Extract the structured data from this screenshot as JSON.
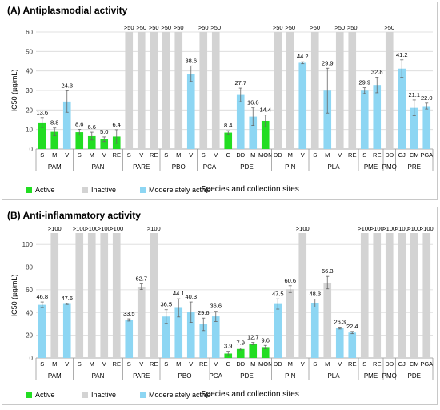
{
  "colors": {
    "active": "#22dd22",
    "inactive": "#d3d3d3",
    "moderate": "#8dd6f3"
  },
  "legend": {
    "active": "Active",
    "inactive": "Inactive",
    "moderate": "Moderelately active"
  },
  "chart_data": [
    {
      "type": "bar",
      "title": "(A) Antiplasmodial activity",
      "ylabel": "IC50 (µg/mL)",
      "xlabel": "Species and collection sites",
      "ylim": [
        0,
        60
      ],
      "yticks": [
        "0",
        "10",
        "20",
        "30",
        "40",
        "50",
        "60"
      ],
      "bars": [
        {
          "cat": "S",
          "value": 13.6,
          "err": 2.5,
          "status": "active",
          "label": "13.6"
        },
        {
          "cat": "M",
          "value": 8.8,
          "err": 2.0,
          "status": "active",
          "label": "8.8"
        },
        {
          "cat": "V",
          "value": 24.3,
          "err": 5.5,
          "status": "moderate",
          "label": "24.3"
        },
        {
          "cat": "S",
          "value": 8.6,
          "err": 1.5,
          "status": "active",
          "label": "8.6"
        },
        {
          "cat": "M",
          "value": 6.6,
          "err": 2.0,
          "status": "active",
          "label": "6.6"
        },
        {
          "cat": "V",
          "value": 5.0,
          "err": 1.2,
          "status": "active",
          "label": "5.0"
        },
        {
          "cat": "RE",
          "value": 6.4,
          "err": 3.5,
          "status": "active",
          "label": "6.4"
        },
        {
          "cat": "S",
          "value": 60,
          "err": 0,
          "status": "inactive",
          "label": ">50"
        },
        {
          "cat": "V",
          "value": 60,
          "err": 0,
          "status": "inactive",
          "label": ">50"
        },
        {
          "cat": "RE",
          "value": 60,
          "err": 0,
          "status": "inactive",
          "label": ">50"
        },
        {
          "cat": "S",
          "value": 60,
          "err": 0,
          "status": "inactive",
          "label": ">50"
        },
        {
          "cat": "M",
          "value": 60,
          "err": 0,
          "status": "inactive",
          "label": ">50"
        },
        {
          "cat": "V",
          "value": 38.6,
          "err": 4.0,
          "status": "moderate",
          "label": "38.6"
        },
        {
          "cat": "S",
          "value": 60,
          "err": 0,
          "status": "inactive",
          "label": ">50"
        },
        {
          "cat": "V",
          "value": 60,
          "err": 0,
          "status": "inactive",
          "label": ">50"
        },
        {
          "cat": "C",
          "value": 8.4,
          "err": 1.0,
          "status": "active",
          "label": "8.4"
        },
        {
          "cat": "DD",
          "value": 27.7,
          "err": 3.5,
          "status": "moderate",
          "label": "27.7"
        },
        {
          "cat": "M",
          "value": 16.6,
          "err": 4.5,
          "status": "moderate",
          "label": "16.6"
        },
        {
          "cat": "MON",
          "value": 14.4,
          "err": 3.0,
          "status": "active",
          "label": "14.4"
        },
        {
          "cat": "DD",
          "value": 60,
          "err": 0,
          "status": "inactive",
          "label": ">50"
        },
        {
          "cat": "M",
          "value": 60,
          "err": 0,
          "status": "inactive",
          "label": ">50"
        },
        {
          "cat": "V",
          "value": 44.2,
          "err": 0.5,
          "status": "moderate",
          "label": "44.2"
        },
        {
          "cat": "S",
          "value": 60,
          "err": 0,
          "status": "inactive",
          "label": ">50"
        },
        {
          "cat": "M",
          "value": 29.9,
          "err": 11.5,
          "status": "moderate",
          "label": "29.9"
        },
        {
          "cat": "V",
          "value": 60,
          "err": 0,
          "status": "inactive",
          "label": ">50"
        },
        {
          "cat": "RE",
          "value": 60,
          "err": 0,
          "status": "inactive",
          "label": ">50"
        },
        {
          "cat": "S",
          "value": 29.9,
          "err": 1.5,
          "status": "moderate",
          "label": "29.9"
        },
        {
          "cat": "RE",
          "value": 32.8,
          "err": 4.0,
          "status": "moderate",
          "label": "32.8"
        },
        {
          "cat": "DD",
          "value": 60,
          "err": 0,
          "status": "inactive",
          "label": ">50"
        },
        {
          "cat": "CJ",
          "value": 41.2,
          "err": 4.5,
          "status": "moderate",
          "label": "41.2"
        },
        {
          "cat": "CM",
          "value": 21.1,
          "err": 4.0,
          "status": "moderate",
          "label": "21.1"
        },
        {
          "cat": "PGA",
          "value": 22.0,
          "err": 1.5,
          "status": "moderate",
          "label": "22.0"
        }
      ],
      "groups": [
        {
          "name": "PAM",
          "start": 0,
          "end": 2
        },
        {
          "name": "PAN",
          "start": 3,
          "end": 6
        },
        {
          "name": "PARE",
          "start": 7,
          "end": 9
        },
        {
          "name": "PBO",
          "start": 10,
          "end": 12
        },
        {
          "name": "PCA",
          "start": 13,
          "end": 14
        },
        {
          "name": "PDE",
          "start": 15,
          "end": 18
        },
        {
          "name": "PIN",
          "start": 19,
          "end": 21
        },
        {
          "name": "PLA",
          "start": 22,
          "end": 25
        },
        {
          "name": "PME",
          "start": 26,
          "end": 27
        },
        {
          "name": "PMO",
          "start": 28,
          "end": 28
        },
        {
          "name": "PRE",
          "start": 29,
          "end": 31
        }
      ]
    },
    {
      "type": "bar",
      "title": "(B) Anti-inflammatory activity",
      "ylabel": "IC50 (µg/mL)",
      "xlabel": "Species and collection sites",
      "ylim": [
        0,
        110
      ],
      "yticks": [
        "0",
        "20",
        "40",
        "60",
        "80",
        "100"
      ],
      "bars": [
        {
          "cat": "S",
          "value": 46.8,
          "err": 2.5,
          "status": "moderate",
          "label": "46.8"
        },
        {
          "cat": "M",
          "value": 110,
          "err": 0,
          "status": "inactive",
          "label": ">100"
        },
        {
          "cat": "V",
          "value": 47.6,
          "err": 0.5,
          "status": "moderate",
          "label": "47.6"
        },
        {
          "cat": "S",
          "value": 110,
          "err": 0,
          "status": "inactive",
          "label": ">100"
        },
        {
          "cat": "M",
          "value": 110,
          "err": 0,
          "status": "inactive",
          "label": ">100"
        },
        {
          "cat": "V",
          "value": 110,
          "err": 0,
          "status": "inactive",
          "label": ">100"
        },
        {
          "cat": "RE",
          "value": 110,
          "err": 0,
          "status": "inactive",
          "label": ">100"
        },
        {
          "cat": "S",
          "value": 33.5,
          "err": 1.0,
          "status": "moderate",
          "label": "33.5"
        },
        {
          "cat": "V",
          "value": 62.7,
          "err": 2.5,
          "status": "inactive",
          "label": "62.7"
        },
        {
          "cat": "RE",
          "value": 110,
          "err": 0,
          "status": "inactive",
          "label": ">100"
        },
        {
          "cat": "S",
          "value": 36.5,
          "err": 6.0,
          "status": "moderate",
          "label": "36.5"
        },
        {
          "cat": "M",
          "value": 44.1,
          "err": 8.0,
          "status": "moderate",
          "label": "44.1"
        },
        {
          "cat": "V",
          "value": 40.3,
          "err": 9.0,
          "status": "moderate",
          "label": "40.3"
        },
        {
          "cat": "RE",
          "value": 29.6,
          "err": 5.5,
          "status": "moderate",
          "label": "29.6"
        },
        {
          "cat": "V",
          "value": 36.6,
          "err": 4.5,
          "status": "moderate",
          "label": "36.6"
        },
        {
          "cat": "C",
          "value": 3.9,
          "err": 2.0,
          "status": "active",
          "label": "3.9"
        },
        {
          "cat": "DD",
          "value": 7.9,
          "err": 0.8,
          "status": "active",
          "label": "7.9"
        },
        {
          "cat": "M",
          "value": 12.7,
          "err": 1.0,
          "status": "active",
          "label": "12.7"
        },
        {
          "cat": "MON",
          "value": 9.6,
          "err": 1.5,
          "status": "active",
          "label": "9.6"
        },
        {
          "cat": "DD",
          "value": 47.5,
          "err": 4.5,
          "status": "moderate",
          "label": "47.5"
        },
        {
          "cat": "M",
          "value": 60.6,
          "err": 3.0,
          "status": "inactive",
          "label": "60.6"
        },
        {
          "cat": "V",
          "value": 110,
          "err": 0,
          "status": "inactive",
          "label": ">100"
        },
        {
          "cat": "S",
          "value": 48.3,
          "err": 3.5,
          "status": "moderate",
          "label": "48.3"
        },
        {
          "cat": "M",
          "value": 66.3,
          "err": 5.5,
          "status": "inactive",
          "label": "66.3"
        },
        {
          "cat": "V",
          "value": 26.3,
          "err": 0.8,
          "status": "moderate",
          "label": "26.3"
        },
        {
          "cat": "RE",
          "value": 22.4,
          "err": 1.0,
          "status": "moderate",
          "label": "22.4"
        },
        {
          "cat": "S",
          "value": 110,
          "err": 0,
          "status": "inactive",
          "label": ">100"
        },
        {
          "cat": "RE",
          "value": 110,
          "err": 0,
          "status": "inactive",
          "label": ">100"
        },
        {
          "cat": "DD",
          "value": 110,
          "err": 0,
          "status": "inactive",
          "label": ">100"
        },
        {
          "cat": "CJ",
          "value": 110,
          "err": 0,
          "status": "inactive",
          "label": ">100"
        },
        {
          "cat": "CM",
          "value": 110,
          "err": 0,
          "status": "inactive",
          "label": ">100"
        },
        {
          "cat": "PGA",
          "value": 110,
          "err": 0,
          "status": "inactive",
          "label": ">100"
        }
      ],
      "groups": [
        {
          "name": "PAM",
          "start": 0,
          "end": 2
        },
        {
          "name": "PAN",
          "start": 3,
          "end": 6
        },
        {
          "name": "PARE",
          "start": 7,
          "end": 9
        },
        {
          "name": "PBO",
          "start": 10,
          "end": 13
        },
        {
          "name": "PCA",
          "start": 14,
          "end": 14
        },
        {
          "name": "PDE",
          "start": 15,
          "end": 18
        },
        {
          "name": "PIN",
          "start": 19,
          "end": 21
        },
        {
          "name": "PLA",
          "start": 22,
          "end": 25
        },
        {
          "name": "PME",
          "start": 26,
          "end": 27
        },
        {
          "name": "PMO",
          "start": 28,
          "end": 28
        },
        {
          "name": "PDE",
          "start": 29,
          "end": 31
        }
      ]
    }
  ]
}
